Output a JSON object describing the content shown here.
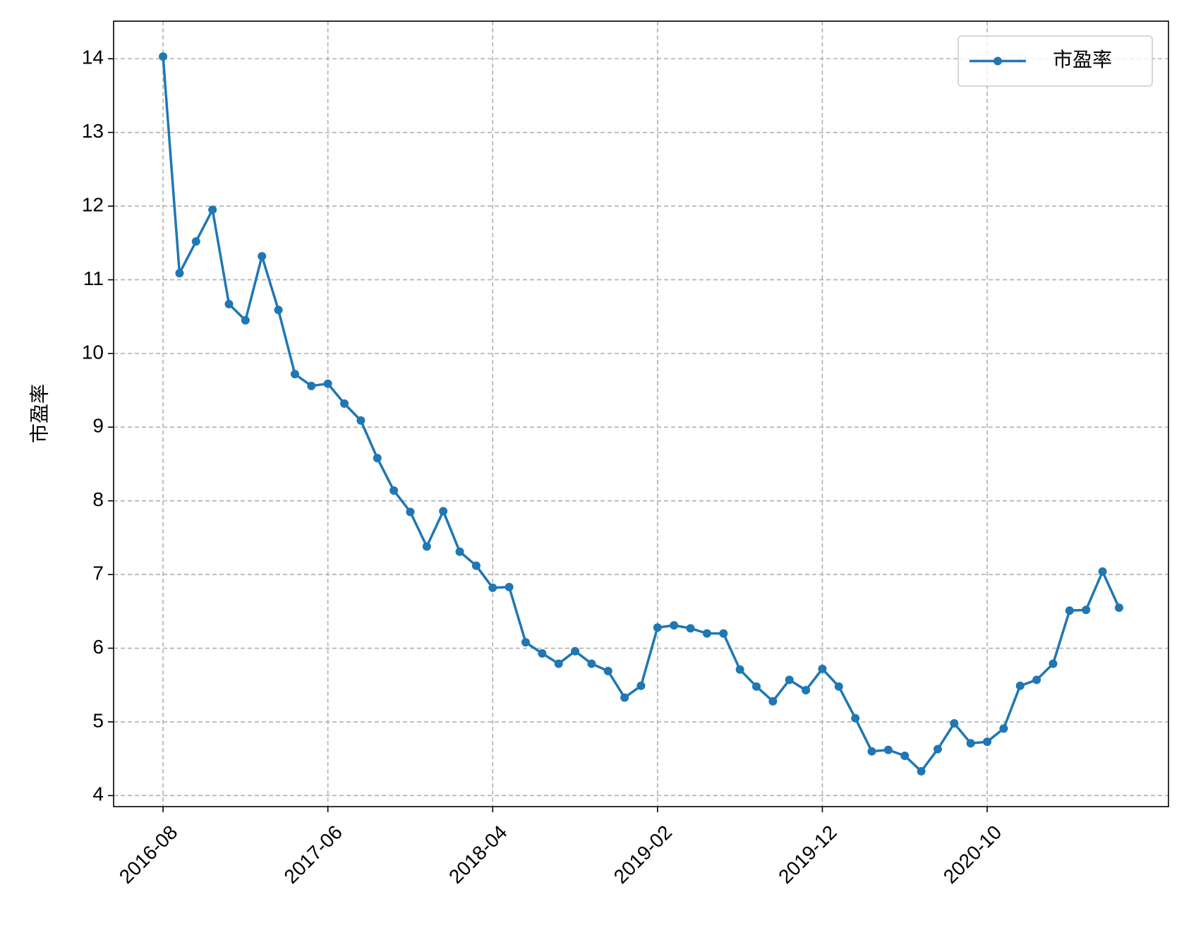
{
  "chart_data": {
    "type": "line",
    "ylabel": "市盈率",
    "x": [
      "2016-08",
      "2016-09",
      "2016-10",
      "2016-11",
      "2016-12",
      "2017-01",
      "2017-02",
      "2017-03",
      "2017-04",
      "2017-05",
      "2017-06",
      "2017-07",
      "2017-08",
      "2017-09",
      "2017-10",
      "2017-11",
      "2017-12",
      "2018-01",
      "2018-02",
      "2018-03",
      "2018-04",
      "2018-05",
      "2018-06",
      "2018-07",
      "2018-08",
      "2018-09",
      "2018-10",
      "2018-11",
      "2018-12",
      "2019-01",
      "2019-02",
      "2019-03",
      "2019-04",
      "2019-05",
      "2019-06",
      "2019-07",
      "2019-08",
      "2019-09",
      "2019-10",
      "2019-11",
      "2019-12",
      "2020-01",
      "2020-02",
      "2020-03",
      "2020-04",
      "2020-05",
      "2020-06",
      "2020-07",
      "2020-08",
      "2020-09",
      "2020-10",
      "2020-11",
      "2020-12",
      "2021-01",
      "2021-02",
      "2021-03",
      "2021-04",
      "2021-05",
      "2021-06"
    ],
    "series": [
      {
        "name": "市盈率",
        "color": "#1f77b4",
        "values": [
          14.03,
          11.09,
          11.52,
          11.95,
          10.67,
          10.45,
          11.32,
          10.59,
          9.72,
          9.56,
          9.59,
          9.32,
          9.09,
          8.58,
          8.14,
          7.85,
          7.38,
          7.86,
          7.31,
          7.12,
          6.82,
          6.83,
          6.08,
          5.93,
          5.79,
          5.96,
          5.79,
          5.69,
          5.33,
          5.49,
          6.28,
          6.31,
          6.27,
          6.2,
          6.2,
          5.71,
          5.48,
          5.28,
          5.57,
          5.43,
          5.72,
          5.48,
          5.05,
          4.6,
          4.62,
          4.54,
          4.33,
          4.63,
          4.98,
          4.71,
          4.73,
          4.91,
          5.49,
          5.57,
          5.79,
          6.51,
          6.52,
          7.04,
          6.55
        ]
      }
    ],
    "xlim": [
      "2016-05",
      "2021-09"
    ],
    "xticks": [
      "2016-08",
      "2017-06",
      "2018-04",
      "2019-02",
      "2019-12",
      "2020-10"
    ],
    "ylim": [
      3.85,
      14.51
    ],
    "yticks": [
      4,
      5,
      6,
      7,
      8,
      9,
      10,
      11,
      12,
      13,
      14
    ],
    "grid": true,
    "legend": "upper right"
  }
}
